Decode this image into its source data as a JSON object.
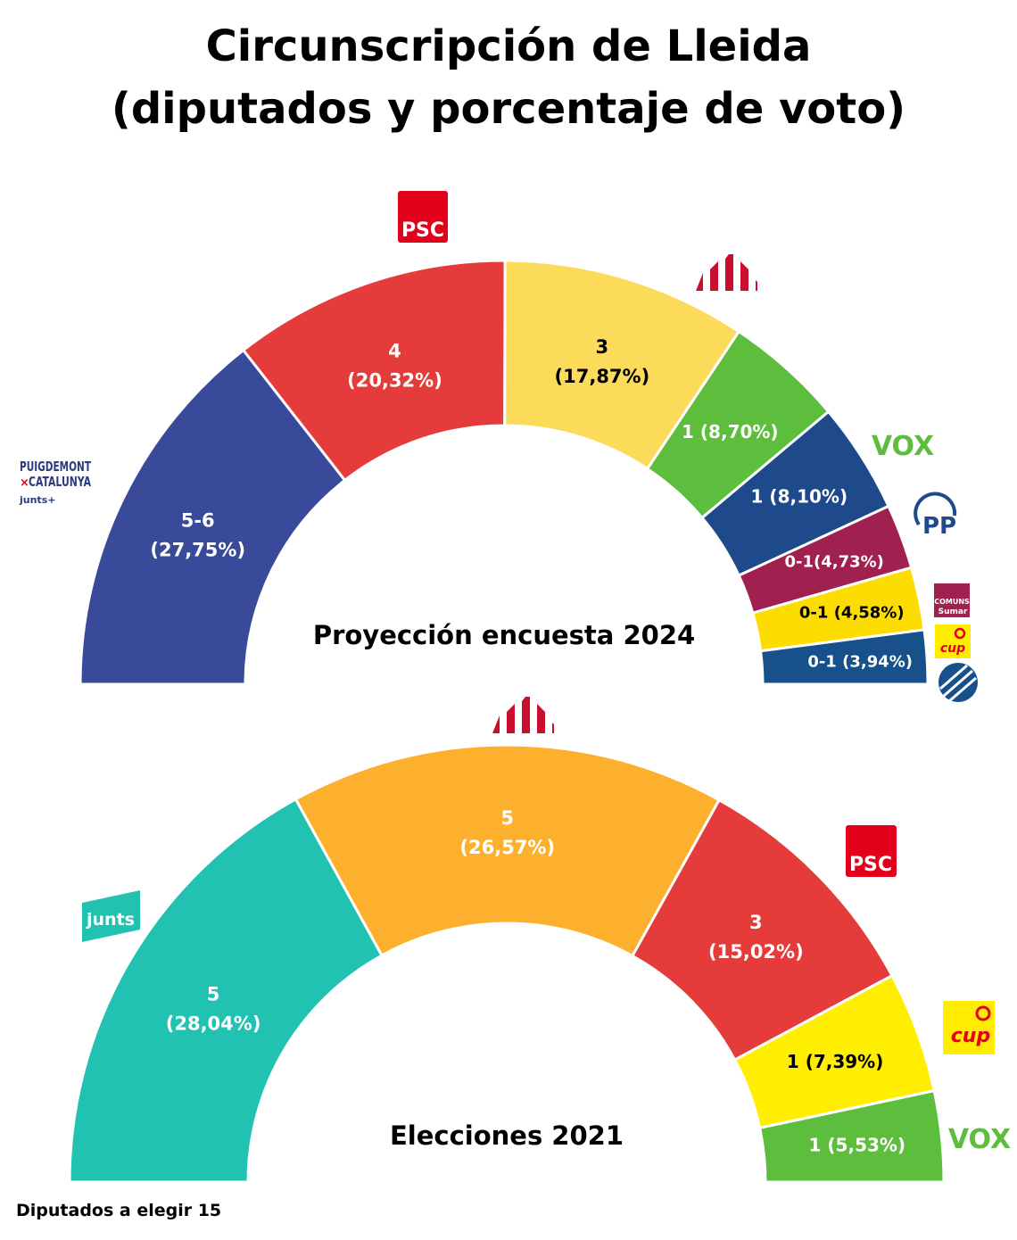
{
  "header": {
    "title_line1": "Circunscripción de Lleida",
    "title_line2": "(diputados y porcentaje de voto)"
  },
  "footer": {
    "note": "Diputados a elegir 15"
  },
  "chart_data": [
    {
      "type": "pie",
      "subtype": "half-donut",
      "title": "Proyección encuesta 2024",
      "total_seats": 15,
      "series": [
        {
          "party": "Puigdemont x Catalunya (Junts+)",
          "seats": "5-6",
          "percent": 27.75,
          "label": "5-6",
          "pct_label": "(27,75%)",
          "color": "#3A4A9A",
          "text_color": "#ffffff"
        },
        {
          "party": "PSC",
          "seats": "4",
          "percent": 20.32,
          "label": "4",
          "pct_label": "(20,32%)",
          "color": "#E53B3B",
          "text_color": "#ffffff"
        },
        {
          "party": "ERC",
          "seats": "3",
          "percent": 17.87,
          "label": "3",
          "pct_label": "(17,87%)",
          "color": "#FDDB5A",
          "text_color": "#000000"
        },
        {
          "party": "VOX",
          "seats": "1",
          "percent": 8.7,
          "label": "1 (8,70%)",
          "pct_label": "",
          "color": "#5CBE3C",
          "text_color": "#ffffff"
        },
        {
          "party": "PP",
          "seats": "1",
          "percent": 8.1,
          "label": "1 (8,10%)",
          "pct_label": "",
          "color": "#1E4A8C",
          "text_color": "#ffffff"
        },
        {
          "party": "Comuns Sumar",
          "seats": "0-1",
          "percent": 4.73,
          "label": "0-1(4,73%)",
          "pct_label": "",
          "color": "#A0214F",
          "text_color": "#ffffff"
        },
        {
          "party": "CUP",
          "seats": "0-1",
          "percent": 4.58,
          "label": "0-1 (4,58%)",
          "pct_label": "",
          "color": "#FDDD00",
          "text_color": "#000000"
        },
        {
          "party": "Aliança Catalana",
          "seats": "0-1",
          "percent": 3.94,
          "label": "0-1 (3,94%)",
          "pct_label": "",
          "color": "#17508A",
          "text_color": "#ffffff"
        }
      ]
    },
    {
      "type": "pie",
      "subtype": "half-donut",
      "title": "Elecciones 2021",
      "total_seats": 15,
      "series": [
        {
          "party": "Junts",
          "seats": "5",
          "percent": 28.04,
          "label": "5",
          "pct_label": "(28,04%)",
          "color": "#22C2B2",
          "text_color": "#ffffff"
        },
        {
          "party": "ERC",
          "seats": "5",
          "percent": 26.57,
          "label": "5",
          "pct_label": "(26,57%)",
          "color": "#FDB02E",
          "text_color": "#ffffff"
        },
        {
          "party": "PSC",
          "seats": "3",
          "percent": 15.02,
          "label": "3",
          "pct_label": "(15,02%)",
          "color": "#E53B3B",
          "text_color": "#ffffff"
        },
        {
          "party": "CUP",
          "seats": "1",
          "percent": 7.39,
          "label": "1 (7,39%)",
          "pct_label": "",
          "color": "#FFEE00",
          "text_color": "#000000"
        },
        {
          "party": "VOX",
          "seats": "1",
          "percent": 5.53,
          "label": "1 (5,53%)",
          "pct_label": "",
          "color": "#5CBE3C",
          "text_color": "#ffffff"
        }
      ]
    }
  ],
  "logos": {
    "psc": "PSC",
    "vox": "VOX",
    "pp": "PP",
    "junts": "junts",
    "cup": "cup",
    "comuns_line1": "COMUNS",
    "comuns_line2": "Sumar",
    "puigdemont_line1": "PUIGDEMONT",
    "puigdemont_line2": "CATALUNYA",
    "puigdemont_line3": "junts+"
  }
}
